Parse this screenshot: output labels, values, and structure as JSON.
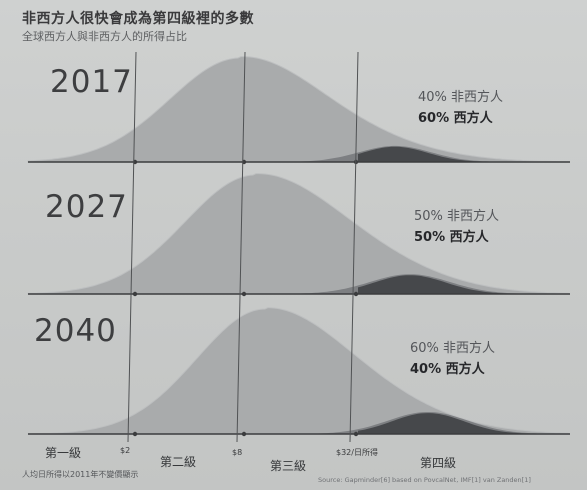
{
  "title": "非西方人很快會成為第四級裡的多數",
  "subtitle": "全球西方人與非西方人的所得占比",
  "chart_data": {
    "type": "area",
    "title": "非西方人很快會成為第四級裡的多數",
    "subtitle": "全球西方人與非西方人的所得占比",
    "xlabel": "$32/日所得",
    "x_ticks": [
      "$2",
      "$8",
      "$32/日所得"
    ],
    "levels": [
      "第一級",
      "第二級",
      "第三級",
      "第四級"
    ],
    "panels": [
      {
        "year": "2017",
        "nonwestern_label": "40% 非西方人",
        "western_label": "60% 西方人",
        "nonwestern_share_pct": 40,
        "western_share_pct": 60
      },
      {
        "year": "2027",
        "nonwestern_label": "50% 非西方人",
        "western_label": "50% 西方人",
        "nonwestern_share_pct": 50,
        "western_share_pct": 50
      },
      {
        "year": "2040",
        "nonwestern_label": "60% 非西方人",
        "western_label": "40% 西方人",
        "nonwestern_share_pct": 60,
        "western_share_pct": 40
      }
    ],
    "footnote": "人均日所得以2011年不變價顯示",
    "source": "Source: Gapminder[6] based on PovcalNet, IMF[1] van Zanden[1]"
  },
  "colors": {
    "main_curve": "#a9abac",
    "main_curve_edge": "#bdbfc0",
    "western_curve": "#7d7f82",
    "western_core": "#46484b",
    "guide_line": "#505254",
    "axis_line": "#3b3c3e"
  }
}
